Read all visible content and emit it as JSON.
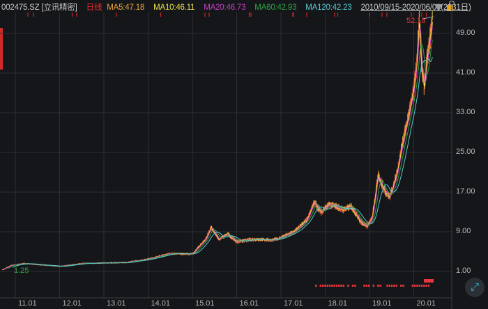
{
  "header": {
    "symbol": "002475.SZ [立讯精密]",
    "period": "日线",
    "ma5": "MA5:47.18",
    "ma10": "MA10:46.11",
    "ma20": "MA20:46.73",
    "ma60": "MA60:42.93",
    "ma120": "MA120:42.23",
    "range": "2010/09/15-2020/06/03(2331日)"
  },
  "colors": {
    "background": "#151619",
    "up": "#e8363a",
    "ma5": "#e8a33a",
    "ma10": "#e8e04a",
    "ma20": "#c040c0",
    "ma60": "#2ea043",
    "ma120": "#5bc8d0",
    "period": "#e02a2a"
  },
  "icons": {
    "dropdown": "triangle-down-icon",
    "lock": "lock-icon",
    "expand": "expand-icon"
  },
  "chart_data": {
    "type": "candlestick",
    "title": "",
    "y_ticks": [
      "49.00",
      "41.00",
      "33.00",
      "25.00",
      "17.00",
      "9.00",
      "1.00"
    ],
    "y_tick_values": [
      49,
      41,
      33,
      25,
      17,
      9,
      1
    ],
    "x_ticks": [
      "11.01",
      "12.01",
      "13.01",
      "14.01",
      "15.01",
      "16.01",
      "17.01",
      "18.01",
      "19.01",
      "20.01"
    ],
    "ylim": [
      1,
      52.5
    ],
    "grid": true,
    "max_label": "52.18",
    "min_label": "1.25",
    "approx_close": {
      "x": [
        2010.7,
        2010.9,
        2011.2,
        2011.6,
        2012.0,
        2012.5,
        2013.0,
        2013.5,
        2014.0,
        2014.5,
        2015.0,
        2015.3,
        2015.42,
        2015.6,
        2015.8,
        2016.0,
        2016.4,
        2016.8,
        2017.0,
        2017.3,
        2017.6,
        2017.75,
        2017.9,
        2018.1,
        2018.4,
        2018.6,
        2018.8,
        2018.95,
        2019.05,
        2019.2,
        2019.3,
        2019.45,
        2019.6,
        2019.75,
        2019.85,
        2019.95,
        2020.05,
        2020.12,
        2020.18,
        2020.24,
        2020.3,
        2020.36,
        2020.42
      ],
      "y": [
        1.3,
        2.2,
        2.6,
        2.3,
        2.0,
        2.6,
        2.7,
        2.8,
        3.5,
        4.6,
        4.5,
        7.5,
        9.8,
        7.5,
        8.5,
        7.0,
        7.5,
        7.3,
        7.8,
        9.0,
        11.5,
        15.0,
        13.0,
        14.5,
        13.5,
        14.0,
        11.0,
        10.2,
        11.5,
        20.5,
        18.0,
        16.0,
        20.0,
        27.0,
        31.0,
        35.0,
        41.0,
        51.0,
        42.0,
        38.0,
        44.0,
        47.0,
        52.18
      ]
    },
    "volume_marker_rows": true
  },
  "expand_button": {
    "glyph": "⤢"
  }
}
